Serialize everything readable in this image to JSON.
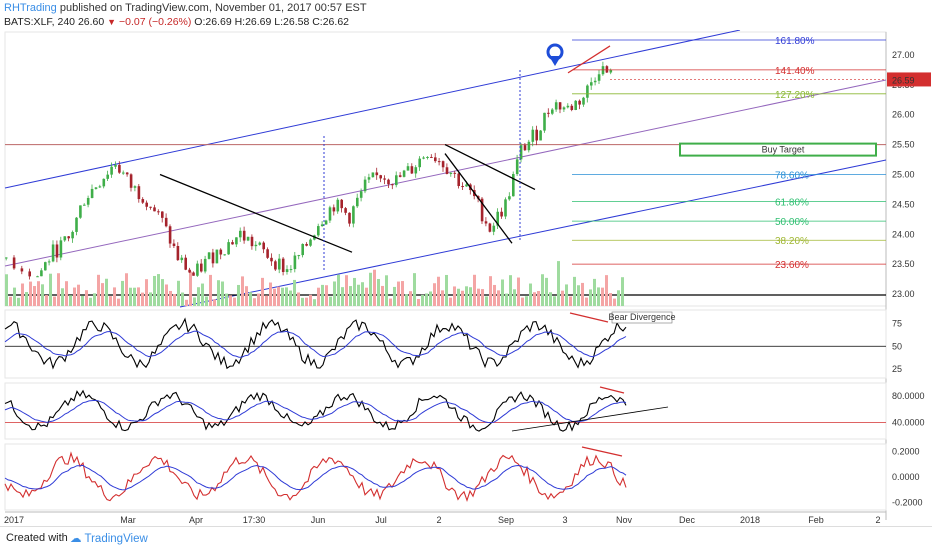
{
  "header": {
    "author": "RHTrading",
    "published": "published on TradingView.com, November 01, 2017 00:57 EST",
    "symbol": "BATS:XLF, 240",
    "last": "26.60",
    "change": "−0.07 (−0.26%)",
    "ohlc": "O:26.69 H:26.69 L:26.58 C:26.62"
  },
  "footer": {
    "created_with": "Created with",
    "brand": "TradingView"
  },
  "colors": {
    "up": "#3fae49",
    "down": "#a5232c",
    "channel": "#2f3bd6",
    "median": "#9467bd",
    "price_badge": "#d32f2f"
  },
  "chart_data": [
    {
      "type": "candlestick",
      "symbol": "BATS:XLF",
      "interval": "240",
      "y_ticks": [
        "27.00",
        "26.50",
        "26.00",
        "25.50",
        "25.00",
        "24.50",
        "24.00",
        "23.50",
        "23.00"
      ],
      "ylim": [
        22.9,
        27.25
      ],
      "current_price": "26.59",
      "x_ticks": [
        "2017",
        "Mar",
        "Apr",
        "17:30",
        "Jun",
        "Jul",
        "2",
        "Sep",
        "3",
        "Nov",
        "Dec",
        "2018",
        "Feb",
        "2"
      ],
      "series_approx": [
        {
          "t": 0,
          "c": 23.6
        },
        {
          "t": 8,
          "c": 23.3
        },
        {
          "t": 12,
          "c": 23.7
        },
        {
          "t": 16,
          "c": 23.9
        },
        {
          "t": 20,
          "c": 24.6
        },
        {
          "t": 24,
          "c": 24.9
        },
        {
          "t": 28,
          "c": 25.2
        },
        {
          "t": 32,
          "c": 24.8
        },
        {
          "t": 36,
          "c": 24.6
        },
        {
          "t": 40,
          "c": 24.2
        },
        {
          "t": 44,
          "c": 23.6
        },
        {
          "t": 48,
          "c": 23.3
        },
        {
          "t": 52,
          "c": 23.6
        },
        {
          "t": 56,
          "c": 23.8
        },
        {
          "t": 60,
          "c": 24.0
        },
        {
          "t": 64,
          "c": 23.8
        },
        {
          "t": 68,
          "c": 23.6
        },
        {
          "t": 72,
          "c": 23.4
        },
        {
          "t": 76,
          "c": 23.7
        },
        {
          "t": 80,
          "c": 24.2
        },
        {
          "t": 84,
          "c": 24.5
        },
        {
          "t": 88,
          "c": 24.3
        },
        {
          "t": 92,
          "c": 24.8
        },
        {
          "t": 96,
          "c": 25.0
        },
        {
          "t": 100,
          "c": 24.9
        },
        {
          "t": 104,
          "c": 25.1
        },
        {
          "t": 108,
          "c": 25.4
        },
        {
          "t": 112,
          "c": 25.2
        },
        {
          "t": 116,
          "c": 24.9
        },
        {
          "t": 120,
          "c": 24.6
        },
        {
          "t": 124,
          "c": 24.1
        },
        {
          "t": 128,
          "c": 24.5
        },
        {
          "t": 132,
          "c": 25.4
        },
        {
          "t": 136,
          "c": 25.7
        },
        {
          "t": 140,
          "c": 26.2
        },
        {
          "t": 144,
          "c": 26.1
        },
        {
          "t": 148,
          "c": 26.3
        },
        {
          "t": 152,
          "c": 26.8
        },
        {
          "t": 156,
          "c": 26.6
        }
      ],
      "fib_levels": [
        {
          "label": "161.80%",
          "value": 27.25
        },
        {
          "label": "141.40%",
          "value": 26.75
        },
        {
          "label": "127.20%",
          "value": 26.35
        },
        {
          "label": "78.60%",
          "value": 25.0
        },
        {
          "label": "61.80%",
          "value": 24.55
        },
        {
          "label": "50.00%",
          "value": 24.22
        },
        {
          "label": "38.20%",
          "value": 23.9
        },
        {
          "label": "23.60%",
          "value": 23.5
        }
      ],
      "annotations": [
        "Buy Target"
      ]
    },
    {
      "type": "line",
      "name": "oscillator-1",
      "y_ticks": [
        "75",
        "50",
        "25"
      ],
      "ylim": [
        15,
        90
      ],
      "annotations": [
        "Bear Divergence"
      ]
    },
    {
      "type": "line",
      "name": "oscillator-2",
      "y_ticks": [
        "80.0000",
        "40.0000"
      ],
      "ylim": [
        15,
        100
      ]
    },
    {
      "type": "line",
      "name": "oscillator-3",
      "y_ticks": [
        "0.2000",
        "0.0000",
        "-0.2000"
      ],
      "ylim": [
        -0.26,
        0.26
      ]
    }
  ]
}
